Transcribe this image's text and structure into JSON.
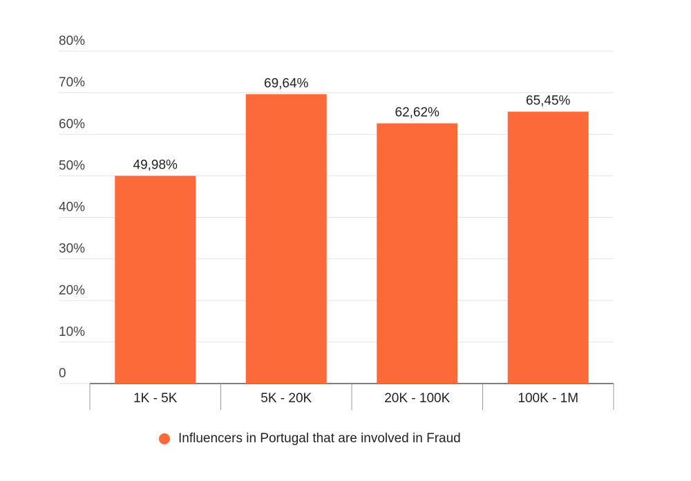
{
  "chart_data": {
    "type": "bar",
    "categories": [
      "1K - 5K",
      "5K - 20K",
      "20K - 100K",
      "100K - 1M"
    ],
    "series": [
      {
        "name": "Influencers in Portugal that are involved in Fraud",
        "color": "#fd6a3a",
        "values": [
          49.98,
          69.64,
          62.62,
          65.45
        ],
        "value_labels": [
          "49,98%",
          "69,64%",
          "62,62%",
          "65,45%"
        ]
      }
    ],
    "ylim": [
      0,
      80
    ],
    "yticks": [
      0,
      {
        "value": 10,
        "label": "10%"
      },
      {
        "value": 20,
        "label": "20%"
      },
      {
        "value": 30,
        "label": "30%"
      },
      {
        "value": 40,
        "label": "40%"
      },
      {
        "value": 50,
        "label": "50%"
      },
      {
        "value": 60,
        "label": "60%"
      },
      {
        "value": 70,
        "label": "70%"
      },
      {
        "value": 80,
        "label": "80%"
      }
    ],
    "grid": true,
    "legend": "bottom"
  }
}
